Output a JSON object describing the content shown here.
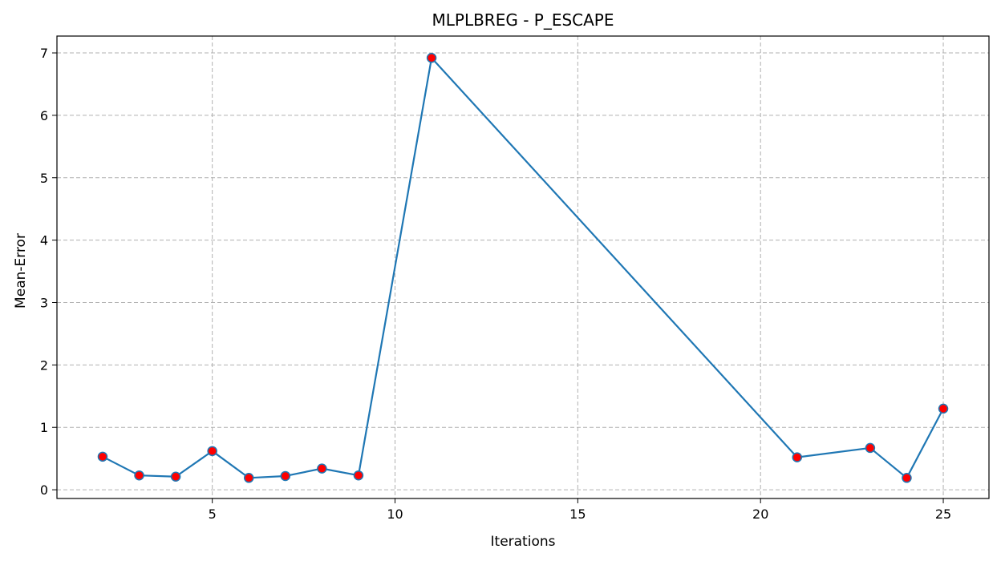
{
  "chart_data": {
    "type": "line",
    "title": "MLPLBREG - P_ESCAPE",
    "xlabel": "Iterations",
    "ylabel": "Mean-Error",
    "xlim": [
      0.75,
      26.25
    ],
    "ylim": [
      -0.14,
      7.27
    ],
    "xticks": [
      5,
      10,
      15,
      20,
      25
    ],
    "yticks": [
      0,
      1,
      2,
      3,
      4,
      5,
      6,
      7
    ],
    "grid": true,
    "series": [
      {
        "x": [
          2,
          3,
          4,
          5,
          6,
          7,
          8,
          9,
          11,
          21,
          23,
          24,
          25
        ],
        "y": [
          0.53,
          0.23,
          0.21,
          0.62,
          0.19,
          0.22,
          0.34,
          0.23,
          6.92,
          0.52,
          0.67,
          0.19,
          1.3
        ],
        "line_color": "#1f77b4",
        "marker_color": "#ff0000"
      }
    ]
  }
}
